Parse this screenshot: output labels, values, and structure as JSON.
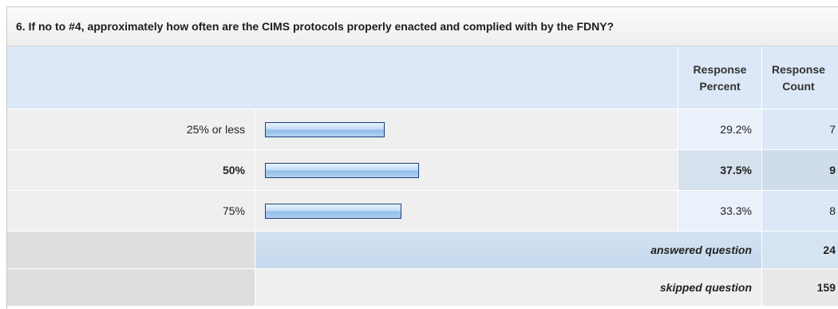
{
  "question": {
    "title": "6. If no to #4, approximately how often are the CIMS protocols properly enacted and complied with by the FDNY?"
  },
  "header": {
    "response_percent": "Response\nPercent",
    "response_count": "Response\nCount"
  },
  "rows": [
    {
      "label": "25% or less",
      "percent": "29.2%",
      "count": "7"
    },
    {
      "label": "50%",
      "percent": "37.5%",
      "count": "9"
    },
    {
      "label": "75%",
      "percent": "33.3%",
      "count": "8"
    }
  ],
  "summary": {
    "answered_label": "answered question",
    "answered_value": "24",
    "skipped_label": "skipped question",
    "skipped_value": "159"
  },
  "chart_data": {
    "type": "bar",
    "categories": [
      "25% or less",
      "50%",
      "75%"
    ],
    "values": [
      29.2,
      37.5,
      33.3
    ],
    "counts": [
      7,
      9,
      8
    ],
    "title": "6. If no to #4, approximately how often are the CIMS protocols properly enacted and complied with by the FDNY?",
    "xlabel": "",
    "ylabel": "",
    "grid": false
  }
}
